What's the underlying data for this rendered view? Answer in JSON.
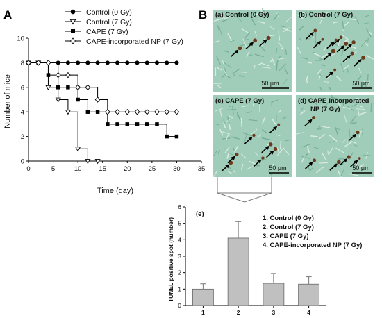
{
  "panel_a": {
    "letter": "A",
    "chart_data": {
      "type": "line",
      "xlabel": "Time (day)",
      "ylabel": "Number of mice",
      "xlim": [
        0,
        35
      ],
      "ylim": [
        0,
        10
      ],
      "xticks": [
        0,
        5,
        10,
        15,
        20,
        25,
        30,
        35
      ],
      "yticks": [
        0,
        2,
        4,
        6,
        8,
        10
      ],
      "legend_position": "top-left",
      "series": [
        {
          "name": "Control (0 Gy)",
          "marker": "filled-circle",
          "x": [
            0,
            2,
            4,
            6,
            8,
            10,
            12,
            14,
            16,
            18,
            20,
            22,
            24,
            26,
            28,
            30
          ],
          "y": [
            8,
            8,
            8,
            8,
            8,
            8,
            8,
            8,
            8,
            8,
            8,
            8,
            8,
            8,
            8,
            8
          ]
        },
        {
          "name": "Control (7 Gy)",
          "marker": "open-triangle-down",
          "x": [
            0,
            2,
            4,
            6,
            8,
            10,
            12,
            14
          ],
          "y": [
            8,
            8,
            6,
            5,
            4,
            1,
            0,
            0
          ]
        },
        {
          "name": "CAPE (7 Gy)",
          "marker": "filled-square",
          "x": [
            0,
            2,
            4,
            6,
            8,
            10,
            12,
            14,
            16,
            18,
            20,
            22,
            24,
            26,
            28,
            30
          ],
          "y": [
            8,
            8,
            7,
            6,
            6,
            5,
            4,
            4,
            3,
            3,
            3,
            3,
            3,
            3,
            2,
            2
          ]
        },
        {
          "name": "CAPE-incorporated NP (7 Gy)",
          "marker": "open-diamond",
          "x": [
            0,
            2,
            4,
            6,
            8,
            10,
            12,
            14,
            16,
            18,
            20,
            22,
            24,
            26,
            28,
            30
          ],
          "y": [
            8,
            8,
            8,
            7,
            7,
            6,
            6,
            5,
            4,
            4,
            4,
            4,
            4,
            4,
            4,
            4
          ]
        }
      ]
    }
  },
  "panel_b": {
    "letter": "B",
    "images": [
      {
        "label": "(a) Control (0 Gy)",
        "scale": "50 μm",
        "spots": 3
      },
      {
        "label": "(b) Control (7 Gy)",
        "scale": "50 μm",
        "spots": 10
      },
      {
        "label": "(c) CAPE (7 Gy)",
        "scale": "50 μm",
        "spots": 7
      },
      {
        "label_line1": "(d) CAPE-incorporated",
        "label_line2": "NP (7 Gy)",
        "scale": "50 μm",
        "spots": 6
      }
    ],
    "colors": {
      "tissue": "#9fcdb9",
      "stain": "#6b3a1e",
      "arrow": "#000000"
    }
  },
  "panel_e": {
    "letter": "(e)",
    "legend": [
      "1. Control (0 Gy)",
      "2. Control (7 Gy)",
      "3. CAPE (7 Gy)",
      "4. CAPE-incorporated NP (7 Gy)"
    ],
    "chart_data": {
      "type": "bar",
      "categories": [
        "1",
        "2",
        "3",
        "4"
      ],
      "values": [
        1.0,
        4.1,
        1.35,
        1.3
      ],
      "errors": [
        0.32,
        1.0,
        0.6,
        0.45
      ],
      "ylabel": "TUNEL positive spot (number)",
      "ylim": [
        0,
        6
      ],
      "yticks": [
        0,
        1,
        2,
        3,
        4,
        5,
        6
      ],
      "bar_color": "#c0c0c0"
    }
  }
}
